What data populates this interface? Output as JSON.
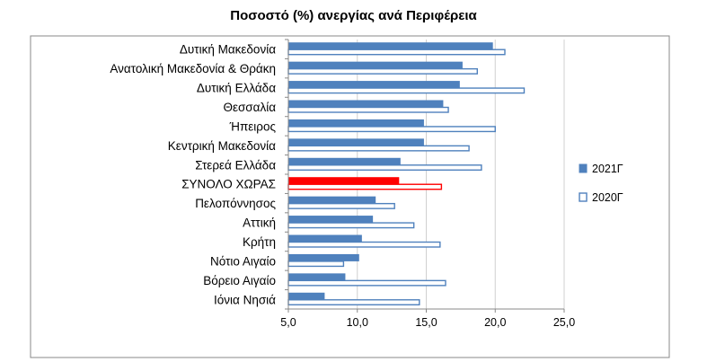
{
  "chart_data": {
    "type": "bar",
    "orientation": "horizontal",
    "title": "Ποσοστό (%) ανεργίας ανά Περιφέρεια",
    "categories": [
      "Δυτική Μακεδονία",
      "Ανατολική Μακεδονία & Θράκη",
      "Δυτική Ελλάδα",
      "Θεσσαλία",
      "Ήπειρος",
      "Κεντρική Μακεδονία",
      "Στερεά Ελλάδα",
      "ΣΥΝΟΛΟ ΧΩΡΑΣ",
      "Πελοπόννησος",
      "Αττική",
      "Κρήτη",
      "Νότιο Αιγαίο",
      "Βόρειο Αιγαίο",
      "Ιόνια Νησιά"
    ],
    "series": [
      {
        "name": "2021Γ",
        "style": "filled",
        "values": [
          19.8,
          17.6,
          17.4,
          16.2,
          14.8,
          14.8,
          13.1,
          13.0,
          11.3,
          11.1,
          10.3,
          10.1,
          9.1,
          7.6
        ]
      },
      {
        "name": "2020Γ",
        "style": "outline",
        "values": [
          20.7,
          18.7,
          22.1,
          16.6,
          20.0,
          18.1,
          19.0,
          16.1,
          12.7,
          14.1,
          16.0,
          9.0,
          16.4,
          14.5
        ]
      }
    ],
    "highlight_category": "ΣΥΝΟΛΟ ΧΩΡΑΣ",
    "xlim": [
      5.0,
      25.0
    ],
    "xticks": [
      "5,0",
      "10,0",
      "15,0",
      "20,0",
      "25,0"
    ],
    "grid": "vertical",
    "legend_position": "right",
    "colors": {
      "primary": "#4f81bd",
      "highlight": "#ff0000",
      "grid": "#d0d0d0",
      "axis": "#888888",
      "frame": "#888888"
    }
  }
}
